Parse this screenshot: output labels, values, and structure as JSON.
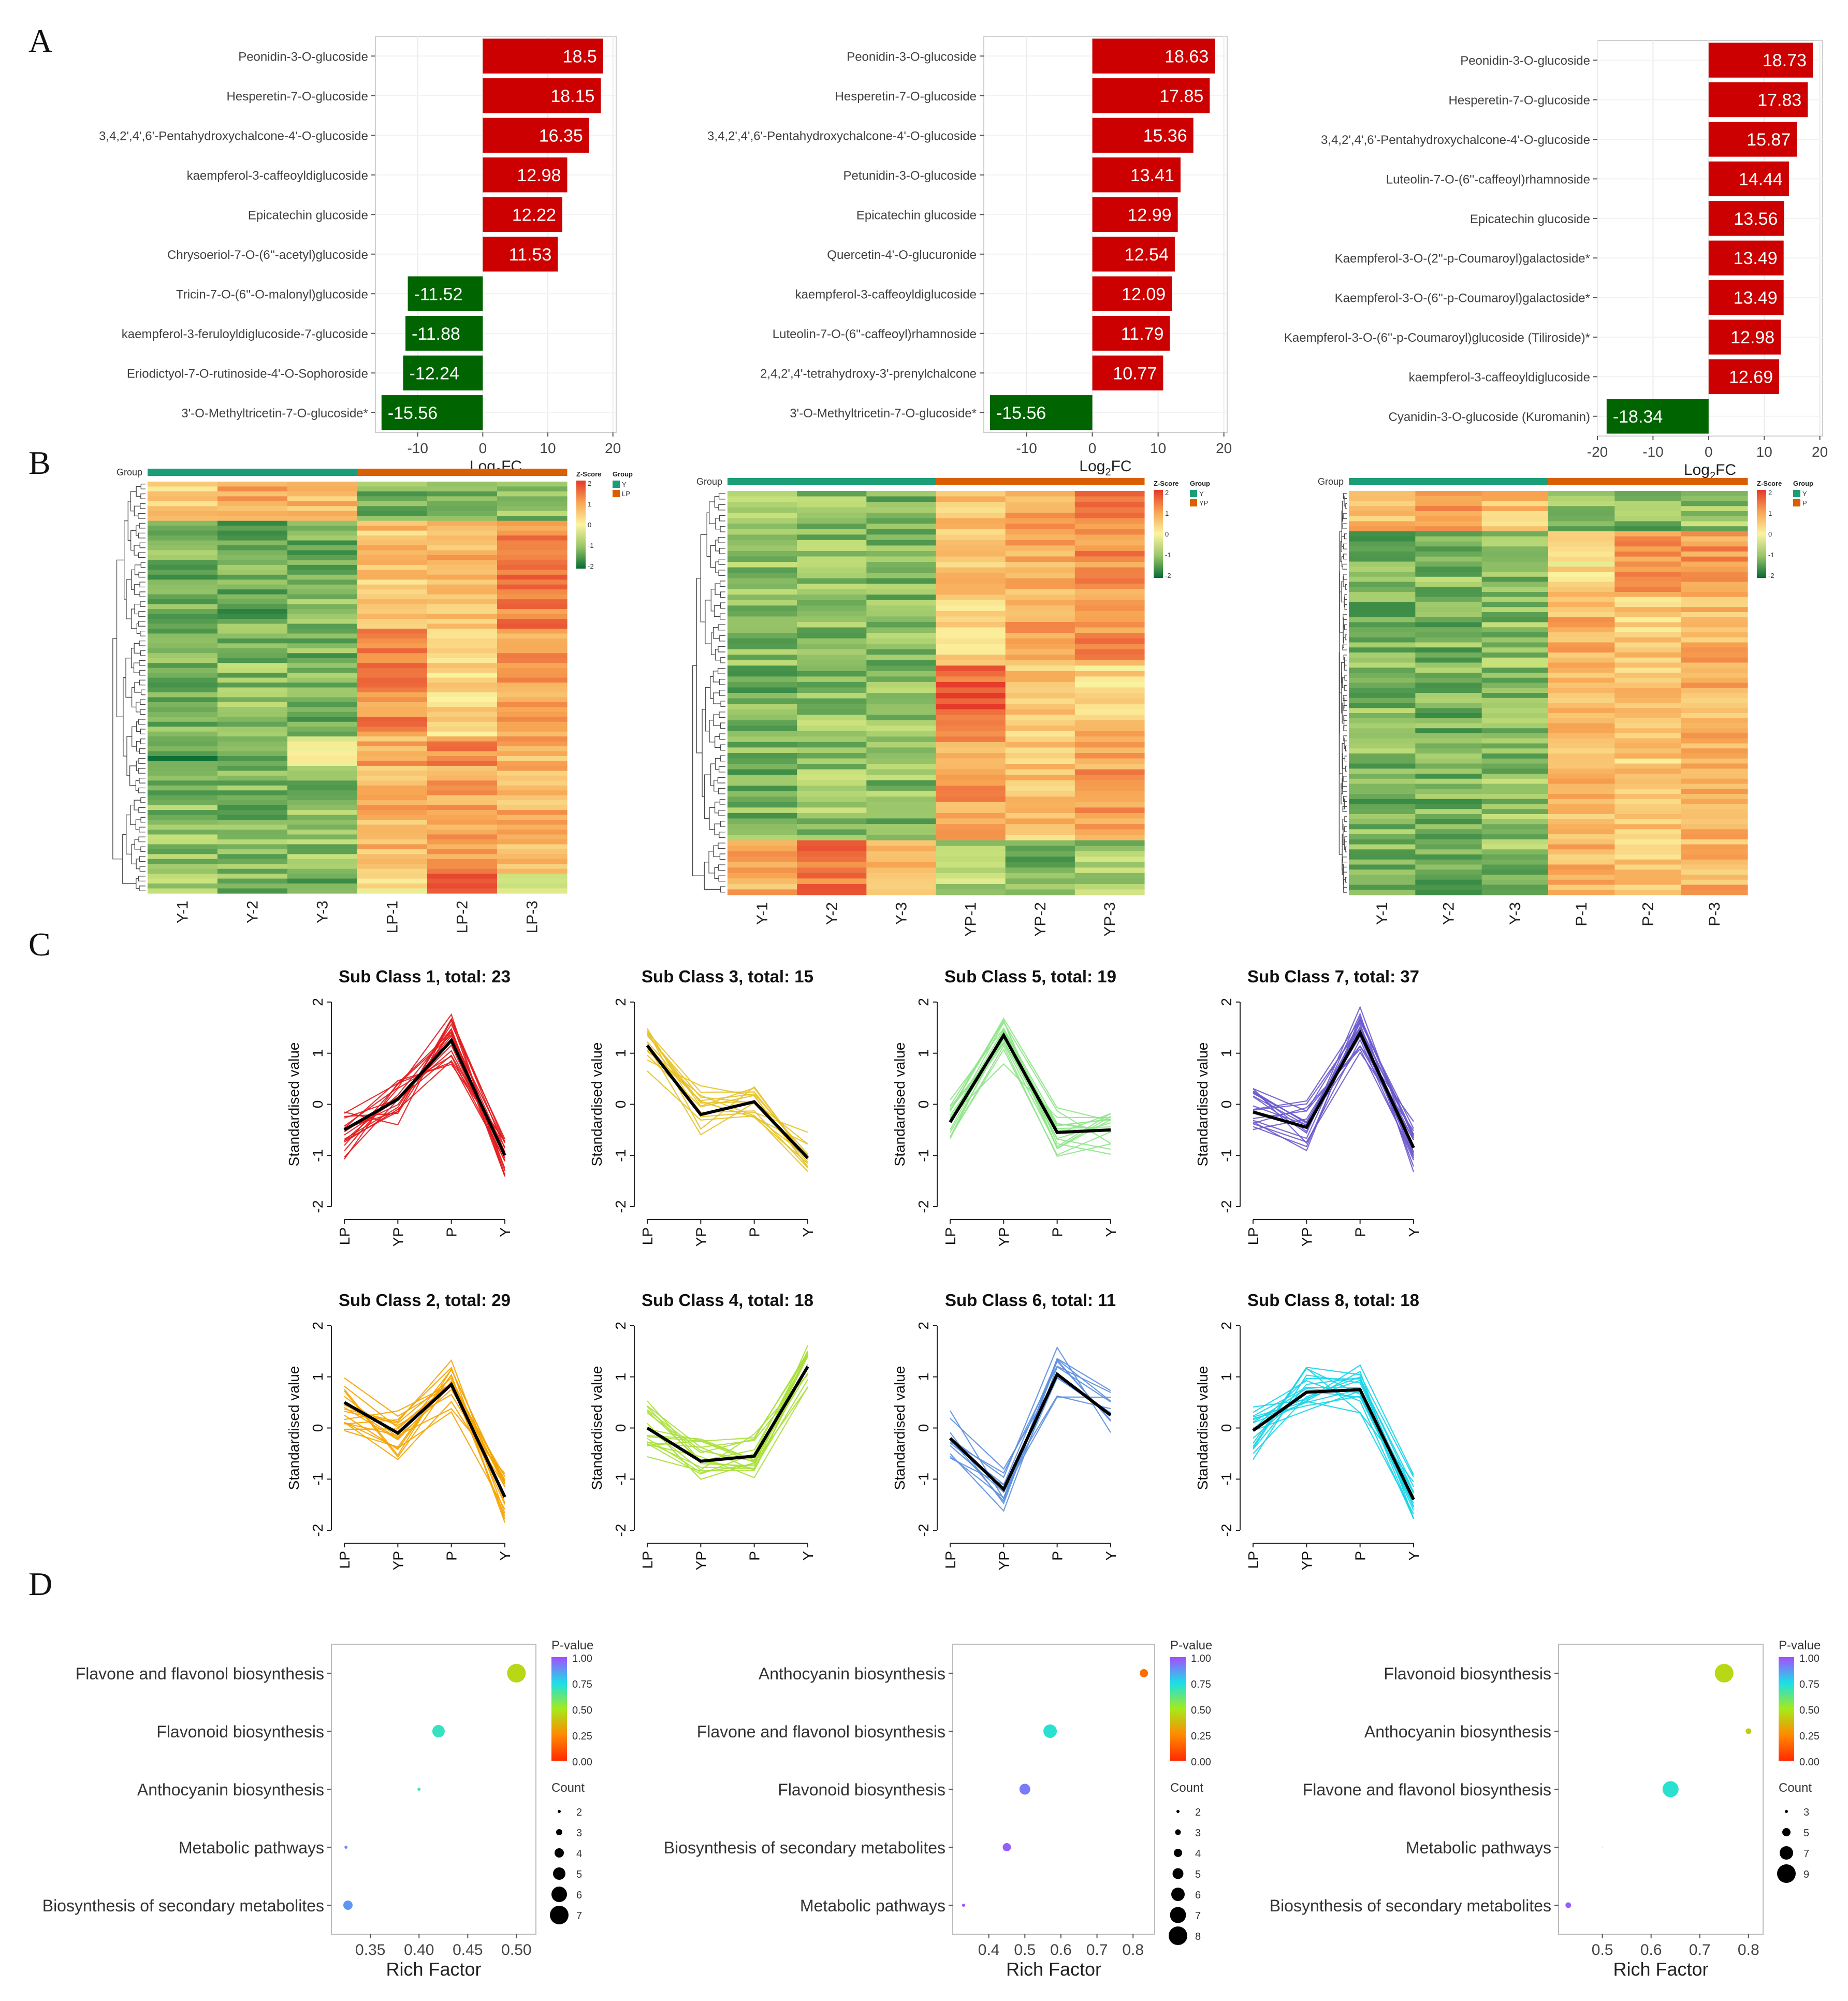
{
  "panel_labels": [
    "A",
    "B",
    "C",
    "D"
  ],
  "colors": {
    "up": "#cc0000",
    "down": "#006400",
    "pos_low": "#fbf3a0",
    "pos_mid": "#f7a552",
    "pos_high": "#e5392a",
    "neg_low": "#c5e07a",
    "neg_high": "#056b32",
    "group_Y": "#1b9e77",
    "group_other": "#d95f02",
    "mean_line": "#000000"
  },
  "chart_data": [
    {
      "id": "A1",
      "type": "bar",
      "orientation": "horizontal",
      "categories": [
        "Peonidin-3-O-glucoside",
        "Hesperetin-7-O-glucoside",
        "3,4,2',4',6'-Pentahydroxychalcone-4'-O-glucoside",
        "kaempferol-3-caffeoyldiglucoside",
        "Epicatechin glucoside",
        "Chrysoeriol-7-O-(6''-acetyl)glucoside",
        "Tricin-7-O-(6''-O-malonyl)glucoside",
        "kaempferol-3-feruloyldiglucoside-7-glucoside",
        "Eriodictyol-7-O-rutinoside-4'-O-Sophoroside",
        "3'-O-Methyltricetin-7-O-glucoside*"
      ],
      "values": [
        18.5,
        18.15,
        16.35,
        12.98,
        12.22,
        11.53,
        -11.52,
        -11.88,
        -12.24,
        -15.56
      ],
      "labels": [
        "18.5",
        "18.15",
        "16.35",
        "12.98",
        "12.22",
        "11.53",
        "-11.52",
        "-11.88",
        "-12.24",
        "-15.56"
      ],
      "xlim": [
        -16.5,
        20.5
      ],
      "ticks": [
        -10,
        0,
        10,
        20
      ],
      "tick_labels": [
        "-10",
        "0",
        "10",
        "20"
      ],
      "xlabel": "Log",
      "xlabel_sub": "2",
      "xlabel_tail": "FC"
    },
    {
      "id": "A2",
      "type": "bar",
      "orientation": "horizontal",
      "categories": [
        "Peonidin-3-O-glucoside",
        "Hesperetin-7-O-glucoside",
        "3,4,2',4',6'-Pentahydroxychalcone-4'-O-glucoside",
        "Petunidin-3-O-glucoside",
        "Epicatechin glucoside",
        "Quercetin-4'-O-glucuronide",
        "kaempferol-3-caffeoyldiglucoside",
        "Luteolin-7-O-(6''-caffeoyl)rhamnoside",
        "2,4,2',4'-tetrahydroxy-3'-prenylchalcone",
        "3'-O-Methyltricetin-7-O-glucoside*"
      ],
      "values": [
        18.63,
        17.85,
        15.36,
        13.41,
        12.99,
        12.54,
        12.09,
        11.79,
        10.77,
        -15.56
      ],
      "labels": [
        "18.63",
        "17.85",
        "15.36",
        "13.41",
        "12.99",
        "12.54",
        "12.09",
        "11.79",
        "10.77",
        "-15.56"
      ],
      "xlim": [
        -16.5,
        20.5
      ],
      "ticks": [
        -10,
        0,
        10,
        20
      ],
      "tick_labels": [
        "-10",
        "0",
        "10",
        "20"
      ],
      "xlabel": "Log",
      "xlabel_sub": "2",
      "xlabel_tail": "FC"
    },
    {
      "id": "A3",
      "type": "bar",
      "orientation": "horizontal",
      "categories": [
        "Peonidin-3-O-glucoside",
        "Hesperetin-7-O-glucoside",
        "3,4,2',4',6'-Pentahydroxychalcone-4'-O-glucoside",
        "Luteolin-7-O-(6''-caffeoyl)rhamnoside",
        "Epicatechin glucoside",
        "Kaempferol-3-O-(2''-p-Coumaroyl)galactoside*",
        "Kaempferol-3-O-(6''-p-Coumaroyl)galactoside*",
        "Kaempferol-3-O-(6''-p-Coumaroyl)glucoside (Tiliroside)*",
        "kaempferol-3-caffeoyldiglucoside",
        "Cyanidin-3-O-glucoside (Kuromanin)"
      ],
      "values": [
        18.73,
        17.83,
        15.87,
        14.44,
        13.56,
        13.49,
        13.49,
        12.98,
        12.69,
        -18.34
      ],
      "labels": [
        "18.73",
        "17.83",
        "15.87",
        "14.44",
        "13.56",
        "13.49",
        "13.49",
        "12.98",
        "12.69",
        "-18.34"
      ],
      "xlim": [
        -20,
        20.5
      ],
      "ticks": [
        -20,
        -10,
        0,
        10,
        20
      ],
      "tick_labels": [
        "-20",
        "-10",
        "0",
        "10",
        "20"
      ],
      "xlabel": "Log",
      "xlabel_sub": "2",
      "xlabel_tail": "FC"
    },
    {
      "id": "B1",
      "type": "heatmap",
      "columns": [
        "Y-1",
        "Y-2",
        "Y-3",
        "LP-1",
        "LP-2",
        "LP-3"
      ],
      "group_label": "Group",
      "groups": [
        "Y",
        "LP"
      ],
      "group_of_columns": [
        0,
        0,
        0,
        1,
        1,
        1
      ],
      "legend_title": "Z-Score",
      "legend_ticks": [
        "2",
        "1",
        "0",
        "-1",
        "-2"
      ],
      "group_legend_title": "Group",
      "row_blocks": [
        {
          "rows": 8,
          "values": [
            0.4,
            0.9,
            0.7,
            -1.3,
            -1.2,
            -1.1
          ]
        },
        {
          "rows": 22,
          "values": [
            -1.2,
            -1.3,
            -1.2,
            0.6,
            0.7,
            1.3
          ]
        },
        {
          "rows": 22,
          "values": [
            -1.3,
            -1.1,
            -1.2,
            1.2,
            0.4,
            1.0
          ]
        },
        {
          "rows": 6,
          "values": [
            -1.6,
            -1.2,
            -0.3,
            0.9,
            1.3,
            0.8
          ]
        },
        {
          "rows": 22,
          "values": [
            -1.1,
            -1.2,
            -1.1,
            0.8,
            1.0,
            0.8
          ]
        },
        {
          "rows": 4,
          "values": [
            -1.0,
            -1.1,
            -1.2,
            0.2,
            1.8,
            -0.2
          ]
        }
      ]
    },
    {
      "id": "B2",
      "type": "heatmap",
      "columns": [
        "Y-1",
        "Y-2",
        "Y-3",
        "YP-1",
        "YP-2",
        "YP-3"
      ],
      "group_label": "Group",
      "groups": [
        "Y",
        "YP"
      ],
      "group_of_columns": [
        0,
        0,
        0,
        1,
        1,
        1
      ],
      "legend_title": "Z-Score",
      "legend_ticks": [
        "2",
        "1",
        "0",
        "-1",
        "-2"
      ],
      "group_legend_title": "Group",
      "row_blocks": [
        {
          "rows": 32,
          "values": [
            -1.1,
            -1.1,
            -1.1,
            0.5,
            0.9,
            1.2
          ]
        },
        {
          "rows": 10,
          "values": [
            -1.2,
            -1.1,
            -1.1,
            1.6,
            0.7,
            0.4
          ]
        },
        {
          "rows": 22,
          "values": [
            -1.2,
            -1.0,
            -1.1,
            1.0,
            0.6,
            1.0
          ]
        },
        {
          "rows": 10,
          "values": [
            0.9,
            1.4,
            0.6,
            -0.7,
            -1.2,
            -0.9
          ]
        }
      ]
    },
    {
      "id": "B3",
      "type": "heatmap",
      "columns": [
        "Y-1",
        "Y-2",
        "Y-3",
        "P-1",
        "P-2",
        "P-3"
      ],
      "group_label": "Group",
      "groups": [
        "Y",
        "P"
      ],
      "group_of_columns": [
        0,
        0,
        0,
        1,
        1,
        1
      ],
      "legend_title": "Z-Score",
      "legend_ticks": [
        "2",
        "1",
        "0",
        "-1",
        "-2"
      ],
      "group_legend_title": "Group",
      "row_blocks": [
        {
          "rows": 8,
          "values": [
            0.7,
            1.0,
            0.6,
            -1.1,
            -1.2,
            -1.0
          ]
        },
        {
          "rows": 12,
          "values": [
            -1.2,
            -1.1,
            -1.2,
            0.2,
            1.2,
            1.1
          ]
        },
        {
          "rows": 60,
          "values": [
            -1.2,
            -1.2,
            -1.1,
            0.8,
            0.5,
            0.8
          ]
        }
      ]
    },
    {
      "id": "C1",
      "type": "line",
      "title": "Sub Class 1, total: 23",
      "color": "#e31a1c",
      "categories": [
        "LP",
        "YP",
        "P",
        "Y"
      ],
      "mean": [
        -0.5,
        0.1,
        1.25,
        -1.0
      ],
      "members": 23,
      "ylabel": "Standardised value",
      "ylim": [
        -2,
        2
      ],
      "yticks": [
        "2",
        "1",
        "0",
        "-1",
        "-2"
      ]
    },
    {
      "id": "C2",
      "type": "line",
      "title": "Sub Class 3, total: 15",
      "color": "#e6c229",
      "categories": [
        "LP",
        "YP",
        "P",
        "Y"
      ],
      "mean": [
        1.15,
        -0.2,
        0.05,
        -1.05
      ],
      "members": 15,
      "ylabel": "Standardised value",
      "ylim": [
        -2,
        2
      ],
      "yticks": [
        "2",
        "1",
        "0",
        "-1",
        "-2"
      ]
    },
    {
      "id": "C3",
      "type": "line",
      "title": "Sub Class 5, total: 19",
      "color": "#90e68a",
      "categories": [
        "LP",
        "YP",
        "P",
        "Y"
      ],
      "mean": [
        -0.35,
        1.35,
        -0.55,
        -0.5
      ],
      "members": 19,
      "ylabel": "Standardised value",
      "ylim": [
        -2,
        2
      ],
      "yticks": [
        "2",
        "1",
        "0",
        "-1",
        "-2"
      ]
    },
    {
      "id": "C4",
      "type": "line",
      "title": "Sub Class 7, total: 37",
      "color": "#6a5acd",
      "categories": [
        "LP",
        "YP",
        "P",
        "Y"
      ],
      "mean": [
        -0.15,
        -0.45,
        1.4,
        -0.85
      ],
      "members": 37,
      "ylabel": "Standardised value",
      "ylim": [
        -2,
        2
      ],
      "yticks": [
        "2",
        "1",
        "0",
        "-1",
        "-2"
      ]
    },
    {
      "id": "C5",
      "type": "line",
      "title": "Sub Class 2, total: 29",
      "color": "#f5a300",
      "categories": [
        "LP",
        "YP",
        "P",
        "Y"
      ],
      "mean": [
        0.5,
        -0.1,
        0.85,
        -1.35
      ],
      "members": 29,
      "ylabel": "Standardised value",
      "ylim": [
        -2,
        2
      ],
      "yticks": [
        "2",
        "1",
        "0",
        "-1",
        "-2"
      ]
    },
    {
      "id": "C6",
      "type": "line",
      "title": "Sub Class 4, total: 18",
      "color": "#a8e03a",
      "categories": [
        "LP",
        "YP",
        "P",
        "Y"
      ],
      "mean": [
        0.0,
        -0.65,
        -0.55,
        1.2
      ],
      "members": 18,
      "ylabel": "Standardised value",
      "ylim": [
        -2,
        2
      ],
      "yticks": [
        "2",
        "1",
        "0",
        "-1",
        "-2"
      ]
    },
    {
      "id": "C7",
      "type": "line",
      "title": "Sub Class 6, total: 11",
      "color": "#5b8fe0",
      "categories": [
        "LP",
        "YP",
        "P",
        "Y"
      ],
      "mean": [
        -0.2,
        -1.2,
        1.05,
        0.25
      ],
      "members": 11,
      "ylabel": "Standardised value",
      "ylim": [
        -2,
        2
      ],
      "yticks": [
        "2",
        "1",
        "0",
        "-1",
        "-2"
      ]
    },
    {
      "id": "C8",
      "type": "line",
      "title": "Sub Class 8, total: 18",
      "color": "#17d4e8",
      "categories": [
        "LP",
        "YP",
        "P",
        "Y"
      ],
      "mean": [
        -0.05,
        0.7,
        0.75,
        -1.4
      ],
      "members": 18,
      "ylabel": "Standardised value",
      "ylim": [
        -2,
        2
      ],
      "yticks": [
        "2",
        "1",
        "0",
        "-1",
        "-2"
      ]
    },
    {
      "id": "D1",
      "type": "scatter",
      "pathways": [
        "Flavone and flavonol biosynthesis",
        "Flavonoid biosynthesis",
        "Anthocyanin biosynthesis",
        "Metabolic pathways",
        "Biosynthesis of secondary metabolites"
      ],
      "rich_factor": [
        0.5,
        0.42,
        0.4,
        0.325,
        0.327
      ],
      "pvalue": [
        0.45,
        0.7,
        0.68,
        0.9,
        0.88
      ],
      "count": [
        7,
        5,
        2,
        2,
        4
      ],
      "xlim": [
        0.31,
        0.52
      ],
      "ticks": [
        0.35,
        0.4,
        0.45,
        0.5
      ],
      "tick_labels": [
        "0.35",
        "0.40",
        "0.45",
        "0.50"
      ],
      "xlabel": "Rich Factor",
      "legend_pvalue_title": "P-value",
      "legend_pvalue_ticks": [
        "1.00",
        "0.75",
        "0.50",
        "0.25",
        "0.00"
      ],
      "legend_count_title": "Count",
      "legend_count_labels": [
        "2",
        "3",
        "4",
        "5",
        "6",
        "7"
      ],
      "legend_count_values": [
        2,
        3,
        4,
        5,
        6,
        7
      ]
    },
    {
      "id": "D2",
      "type": "scatter",
      "pathways": [
        "Anthocyanin biosynthesis",
        "Flavone and flavonol biosynthesis",
        "Flavonoid biosynthesis",
        "Biosynthesis of secondary metabolites",
        "Metabolic pathways"
      ],
      "rich_factor": [
        0.83,
        0.57,
        0.5,
        0.45,
        0.33
      ],
      "pvalue": [
        0.18,
        0.72,
        0.92,
        0.97,
        1.0
      ],
      "count": [
        4,
        6,
        5,
        4,
        2
      ],
      "xlim": [
        0.3,
        0.86
      ],
      "ticks": [
        0.4,
        0.5,
        0.6,
        0.7,
        0.8
      ],
      "tick_labels": [
        "0.4",
        "0.5",
        "0.6",
        "0.7",
        "0.8"
      ],
      "xlabel": "Rich Factor",
      "legend_pvalue_title": "P-value",
      "legend_pvalue_ticks": [
        "1.00",
        "0.75",
        "0.50",
        "0.25",
        "0.00"
      ],
      "legend_count_title": "Count",
      "legend_count_labels": [
        "2",
        "3",
        "4",
        "5",
        "6",
        "7",
        "8"
      ],
      "legend_count_values": [
        2,
        3,
        4,
        5,
        6,
        7,
        8
      ]
    },
    {
      "id": "D3",
      "type": "scatter",
      "pathways": [
        "Flavonoid biosynthesis",
        "Anthocyanin biosynthesis",
        "Flavone and flavonol biosynthesis",
        "Metabolic pathways",
        "Biosynthesis of secondary metabolites"
      ],
      "rich_factor": [
        0.75,
        0.8,
        0.64,
        0.5,
        0.43
      ],
      "pvalue": [
        0.45,
        0.42,
        0.72,
        0.92,
        0.97
      ],
      "count": [
        9,
        4,
        8,
        2,
        4
      ],
      "xlim": [
        0.41,
        0.83
      ],
      "ticks": [
        0.5,
        0.6,
        0.7,
        0.8
      ],
      "tick_labels": [
        "0.5",
        "0.6",
        "0.7",
        "0.8"
      ],
      "xlabel": "Rich Factor",
      "legend_pvalue_title": "P-value",
      "legend_pvalue_ticks": [
        "1.00",
        "0.75",
        "0.50",
        "0.25",
        "0.00"
      ],
      "legend_count_title": "Count",
      "legend_count_labels": [
        "3",
        "5",
        "7",
        "9"
      ],
      "legend_count_values": [
        3,
        5,
        7,
        9
      ]
    }
  ]
}
